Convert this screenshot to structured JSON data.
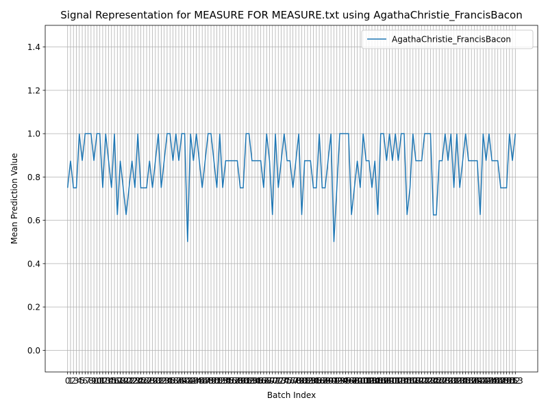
{
  "chart_data": {
    "type": "line",
    "title": "Signal Representation for MEASURE FOR MEASURE.txt using AgathaChristie_FrancisBacon",
    "xlabel": "Batch Index",
    "ylabel": "Mean Prediction Value",
    "x": [
      0,
      1,
      2,
      3,
      4,
      5,
      6,
      7,
      8,
      9,
      10,
      11,
      12,
      13,
      14,
      15,
      16,
      17,
      18,
      19,
      20,
      21,
      22,
      23,
      24,
      25,
      26,
      27,
      28,
      29,
      30,
      31,
      32,
      33,
      34,
      35,
      36,
      37,
      38,
      39,
      40,
      41,
      42,
      43,
      44,
      45,
      46,
      47,
      48,
      49,
      50,
      51,
      52,
      53,
      54,
      55,
      56,
      57,
      58,
      59,
      60,
      61,
      62,
      63,
      64,
      65,
      66,
      67,
      68,
      69,
      70,
      71,
      72,
      73,
      74,
      75,
      76,
      77,
      78,
      79,
      80,
      81,
      82,
      83,
      84,
      85,
      86,
      87,
      88,
      89,
      90,
      91,
      92,
      93,
      94,
      95,
      96,
      97,
      98,
      99,
      100,
      101,
      102,
      103,
      104,
      105,
      106,
      107,
      108,
      109,
      110,
      111,
      112,
      113,
      114,
      115,
      116,
      117,
      118,
      119,
      120,
      121,
      122,
      123,
      124,
      125,
      126,
      127,
      128,
      129,
      130,
      131,
      132,
      133,
      134,
      135,
      136,
      137,
      138,
      139,
      140,
      141,
      142,
      143,
      144,
      145,
      146,
      147,
      148,
      149,
      150,
      151,
      152,
      153
    ],
    "series": [
      {
        "name": "AgathaChristie_FrancisBacon",
        "color": "#1f77b4",
        "values": [
          0.75,
          0.875,
          0.75,
          0.75,
          1,
          0.875,
          1,
          1,
          1,
          0.875,
          1,
          1,
          0.75,
          1,
          0.875,
          0.75,
          1,
          0.625,
          0.875,
          0.75,
          0.625,
          0.75,
          0.875,
          0.75,
          1,
          0.75,
          0.75,
          0.75,
          0.875,
          0.75,
          0.875,
          1,
          0.75,
          0.875,
          1,
          1,
          0.875,
          1,
          0.875,
          1,
          1,
          0.5,
          1,
          0.875,
          1,
          0.875,
          0.75,
          0.875,
          1,
          1,
          0.875,
          0.75,
          1,
          0.75,
          0.875,
          0.875,
          0.875,
          0.875,
          0.875,
          0.75,
          0.75,
          1,
          1,
          0.875,
          0.875,
          0.875,
          0.875,
          0.75,
          1,
          0.875,
          0.625,
          1,
          0.75,
          0.875,
          1,
          0.875,
          0.875,
          0.75,
          0.875,
          1,
          0.625,
          0.875,
          0.875,
          0.875,
          0.75,
          0.75,
          1,
          0.75,
          0.75,
          0.875,
          1,
          0.5,
          0.75,
          1,
          1,
          1,
          1,
          0.625,
          0.75,
          0.875,
          0.75,
          1,
          0.875,
          0.875,
          0.75,
          0.875,
          0.625,
          1,
          1,
          0.875,
          1,
          0.875,
          1,
          0.875,
          1,
          1,
          0.625,
          0.75,
          1,
          0.875,
          0.875,
          0.875,
          1,
          1,
          1,
          0.625,
          0.625,
          0.875,
          0.875,
          1,
          0.875,
          1,
          0.75,
          1,
          0.75,
          0.875,
          1,
          0.875,
          0.875,
          0.875,
          0.875,
          0.625,
          1,
          0.875,
          1,
          0.875,
          0.875,
          0.875,
          0.75,
          0.75,
          0.75,
          1,
          0.875,
          1
        ]
      }
    ],
    "xlim": [
      -7.65,
      160.65
    ],
    "xticks": [
      0,
      1,
      2,
      3,
      4,
      5,
      6,
      7,
      8,
      9,
      10,
      11,
      12,
      13,
      14,
      15,
      16,
      17,
      18,
      19,
      20,
      21,
      22,
      23,
      24,
      25,
      26,
      27,
      28,
      29,
      30,
      31,
      32,
      33,
      34,
      35,
      36,
      37,
      38,
      39,
      40,
      41,
      42,
      43,
      44,
      45,
      46,
      47,
      48,
      49,
      50,
      51,
      52,
      53,
      54,
      55,
      56,
      57,
      58,
      59,
      60,
      61,
      62,
      63,
      64,
      65,
      66,
      67,
      68,
      69,
      70,
      71,
      72,
      73,
      74,
      75,
      76,
      77,
      78,
      79,
      80,
      81,
      82,
      83,
      84,
      85,
      86,
      87,
      88,
      89,
      90,
      91,
      92,
      93,
      94,
      95,
      96,
      97,
      98,
      99,
      100,
      101,
      102,
      103,
      104,
      105,
      106,
      107,
      108,
      109,
      110,
      111,
      112,
      113,
      114,
      115,
      116,
      117,
      118,
      119,
      120,
      121,
      122,
      123,
      124,
      125,
      126,
      127,
      128,
      129,
      130,
      131,
      132,
      133,
      134,
      135,
      136,
      137,
      138,
      139,
      140,
      141,
      142,
      143,
      144,
      145,
      146,
      147,
      148,
      149,
      150,
      151,
      152,
      153
    ],
    "ylim": [
      -0.1,
      1.5
    ],
    "yticks": [
      {
        "value": 0,
        "label": "0.0"
      },
      0.2,
      0.4,
      0.6,
      0.8,
      {
        "value": 1,
        "label": "1.0"
      },
      1.2,
      1.4
    ],
    "grid": true,
    "legend": "upper right"
  }
}
